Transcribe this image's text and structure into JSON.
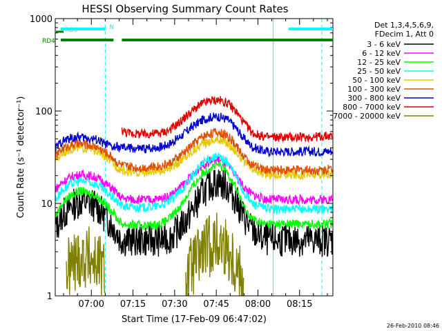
{
  "footer_date": "26-Feb-2010 08:46",
  "chart_data": {
    "type": "line",
    "title": "HESSI Observing Summary Count Rates",
    "xlabel": "Start Time (17-Feb-09 06:47:02)",
    "ylabel": "Count Rate (s⁻¹ detector⁻¹)",
    "yscale": "log",
    "ylim": [
      1,
      1000
    ],
    "xlim_minutes_after_start": [
      0,
      100
    ],
    "x_ticks": [
      {
        "label": "07:00",
        "min": 13
      },
      {
        "label": "07:15",
        "min": 28
      },
      {
        "label": "07:30",
        "min": 43
      },
      {
        "label": "07:45",
        "min": 58
      },
      {
        "label": "08:00",
        "min": 73
      },
      {
        "label": "08:15",
        "min": 88
      }
    ],
    "y_ticks": [
      {
        "label": "1",
        "value": 1
      },
      {
        "label": "10",
        "value": 10
      },
      {
        "label": "100",
        "value": 100
      },
      {
        "label": "1000",
        "value": 1000
      }
    ],
    "legend_header": [
      "Det 1,3,4,5,6,9,",
      "FDecim 1, Att 0"
    ],
    "legend_position": "right",
    "x": [
      0,
      1,
      2,
      4,
      6,
      9,
      12,
      15,
      18,
      21,
      22,
      23,
      24,
      25,
      26,
      29,
      32,
      35,
      38,
      41,
      44,
      47,
      50,
      53,
      56,
      59,
      62,
      65,
      68,
      71,
      74,
      75,
      77,
      80,
      85,
      90,
      95,
      100
    ],
    "series": [
      {
        "name": "3 - 6 keV",
        "color": "#000000",
        "values": [
          5.6,
          6.0,
          7.2,
          8.2,
          9.5,
          10.5,
          10.2,
          9.2,
          7.2,
          5.5,
          5.0,
          4.3,
          4.1,
          4.0,
          4.0,
          4.0,
          4.0,
          4.0,
          4.0,
          4.2,
          5.0,
          6.5,
          9.0,
          13.0,
          16.0,
          17.0,
          15.0,
          11.0,
          7.0,
          5.0,
          4.3,
          4.1,
          4.0,
          4.0,
          4.0,
          4.0,
          4.0,
          4.0
        ]
      },
      {
        "name": "6 - 12 keV",
        "color": "#ff00ff",
        "values": [
          14.5,
          15.0,
          16.5,
          18.0,
          19.5,
          20.5,
          20.0,
          19.0,
          16.5,
          14.0,
          13.0,
          12.0,
          11.5,
          11.3,
          11.2,
          11.0,
          11.0,
          11.0,
          11.2,
          12.0,
          14.0,
          17.0,
          21.0,
          26.0,
          29.0,
          29.5,
          26.0,
          20.0,
          15.0,
          12.5,
          11.5,
          11.2,
          11.0,
          11.0,
          11.0,
          11.0,
          11.0,
          11.2
        ]
      },
      {
        "name": "12 - 25 keV",
        "color": "#00ff00",
        "values": [
          7.5,
          8.0,
          9.5,
          11.0,
          12.5,
          13.5,
          13.0,
          12.0,
          9.8,
          8.0,
          7.0,
          6.5,
          6.0,
          6.0,
          5.9,
          5.8,
          5.8,
          5.8,
          6.0,
          6.8,
          8.5,
          11.5,
          16.0,
          21.0,
          25.0,
          26.0,
          22.0,
          15.0,
          9.0,
          6.8,
          6.2,
          6.0,
          6.0,
          6.0,
          6.0,
          6.0,
          6.0,
          6.0
        ]
      },
      {
        "name": "25 - 50 keV",
        "color": "#00ffff",
        "values": [
          11.0,
          12.0,
          13.5,
          15.0,
          16.5,
          17.5,
          17.0,
          16.0,
          13.5,
          11.5,
          10.5,
          10.0,
          9.5,
          9.3,
          9.2,
          9.0,
          9.0,
          9.2,
          9.5,
          10.5,
          12.5,
          16.0,
          21.0,
          27.0,
          31.0,
          32.0,
          28.0,
          20.0,
          13.0,
          10.0,
          9.3,
          9.0,
          8.8,
          8.7,
          8.7,
          8.7,
          8.7,
          8.8
        ]
      },
      {
        "name": "50 - 100 keV",
        "color": "#e8c800",
        "values": [
          30.0,
          31.0,
          34.0,
          37.0,
          39.0,
          40.0,
          39.0,
          37.0,
          32.0,
          27.0,
          25.0,
          24.0,
          23.0,
          22.5,
          22.0,
          21.5,
          21.5,
          22.0,
          22.5,
          24.0,
          27.0,
          32.0,
          38.0,
          44.0,
          48.0,
          49.0,
          45.0,
          37.0,
          28.0,
          23.0,
          21.5,
          21.0,
          20.5,
          20.5,
          20.5,
          20.5,
          20.5,
          20.5
        ]
      },
      {
        "name": "100 - 300 keV",
        "color": "#e05000",
        "values": [
          33.0,
          35.0,
          38.0,
          41.0,
          43.0,
          44.0,
          43.0,
          41.0,
          36.0,
          31.0,
          28.0,
          27.0,
          26.0,
          25.5,
          25.0,
          24.5,
          24.5,
          25.0,
          25.5,
          27.0,
          31.0,
          37.0,
          45.0,
          53.0,
          58.0,
          59.0,
          54.0,
          43.0,
          32.0,
          26.0,
          24.0,
          23.5,
          23.0,
          23.0,
          23.0,
          23.0,
          23.0,
          23.5
        ]
      },
      {
        "name": "300 - 800 keV",
        "color": "#0000d0",
        "values": [
          40.0,
          42.0,
          46.0,
          49.0,
          51.0,
          52.0,
          51.0,
          49.0,
          44.0,
          40.0,
          41.0,
          40.0,
          40.0,
          40.0,
          40.0,
          39.0,
          39.0,
          40.0,
          41.0,
          44.0,
          50.0,
          59.0,
          70.0,
          80.0,
          86.0,
          87.0,
          81.0,
          66.0,
          50.0,
          41.0,
          38.0,
          37.0,
          36.5,
          36.5,
          36.5,
          36.5,
          36.5,
          37.0
        ]
      },
      {
        "name": "800 - 7000 keV",
        "color": "#e00000",
        "values": [
          null,
          null,
          null,
          null,
          null,
          null,
          null,
          null,
          null,
          null,
          null,
          null,
          62.0,
          60.0,
          58.0,
          57.0,
          56.0,
          57.0,
          58.0,
          62.0,
          72.0,
          87.0,
          104.0,
          120.0,
          130.0,
          131.0,
          122.0,
          100.0,
          74.0,
          58.0,
          54.0,
          53.0,
          52.0,
          52.0,
          52.0,
          52.0,
          53.0,
          54.0
        ]
      },
      {
        "name": "7000 - 20000 keV",
        "color": "#808000",
        "values": [
          null,
          null,
          null,
          1.8,
          2.2,
          2.6,
          2.6,
          2.3,
          1.8,
          null,
          null,
          null,
          null,
          null,
          null,
          null,
          null,
          null,
          null,
          null,
          null,
          1.6,
          2.2,
          3.0,
          3.6,
          3.8,
          3.2,
          2.2,
          1.5,
          null,
          null,
          null,
          null,
          null,
          null,
          null,
          null,
          null
        ]
      }
    ],
    "state_bars": [
      {
        "label": "RD0",
        "color": "#00ffff",
        "intervals": [
          [
            0,
            18
          ],
          [
            82,
            100
          ]
        ]
      },
      {
        "label": "RD4",
        "color": "#008000",
        "intervals": [
          [
            0,
            21
          ],
          [
            22,
            100
          ]
        ]
      },
      {
        "label": "N",
        "color": "#00ffff",
        "intervals": [
          [
            19,
            20
          ]
        ]
      }
    ],
    "vertical_markers": [
      {
        "min": 0,
        "style": "solid",
        "color": "#00ffff"
      },
      {
        "min": 18,
        "style": "dashed",
        "color": "#00ffff"
      },
      {
        "min": 78.5,
        "style": "solid",
        "color": "#00ffff"
      },
      {
        "min": 96,
        "style": "dashed",
        "color": "#00ffff"
      }
    ]
  }
}
